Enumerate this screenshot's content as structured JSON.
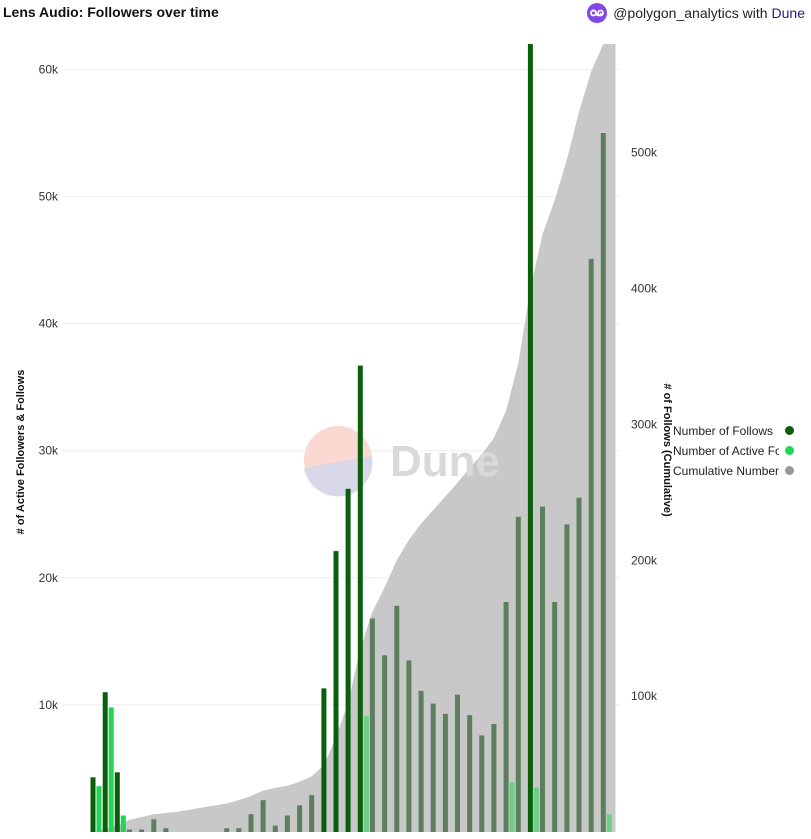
{
  "header": {
    "title": "Lens Audio: Followers over time",
    "attribution_user": "@polygon_analytics",
    "attribution_with": "with",
    "attribution_brand": "Dune"
  },
  "watermark": {
    "text": "Dune"
  },
  "colors": {
    "follows": "#0b5e0b",
    "active": "#1fd655",
    "cumulative": "#c8c8c8",
    "overlay_bar": "#5d7f5d",
    "cumulative_dot": "#999999"
  },
  "legend": [
    {
      "label": "Number of Follows",
      "color": "#0b5e0b"
    },
    {
      "label": "Number of Active Followers",
      "color": "#1fd655"
    },
    {
      "label": "Cumulative Number of Follows",
      "color": "#999999"
    }
  ],
  "chart_data": {
    "type": "bar+area",
    "title": "Lens Audio: Followers over time",
    "y_left_label": "# of Active Followers & Follows",
    "y_right_label": "# of Follows (Cumulative)",
    "y_left_range": [
      0,
      62000
    ],
    "y_right_range": [
      0,
      580000
    ],
    "y_left_ticks": [
      10000,
      20000,
      30000,
      40000,
      50000,
      60000
    ],
    "y_left_tick_labels": [
      "10k",
      "20k",
      "30k",
      "40k",
      "50k",
      "60k"
    ],
    "y_right_ticks": [
      100000,
      200000,
      300000,
      400000,
      500000
    ],
    "y_right_tick_labels": [
      "100k",
      "200k",
      "300k",
      "400k",
      "500k"
    ],
    "periods": 44,
    "series": [
      {
        "name": "Number of Follows",
        "values": [
          4300,
          11000,
          4700,
          200,
          200,
          1000,
          300,
          0,
          0,
          0,
          0,
          300,
          300,
          1400,
          2500,
          500,
          1300,
          2100,
          2900,
          11300,
          22100,
          27000,
          36700,
          16800,
          13900,
          17800,
          13500,
          11100,
          10100,
          9300,
          10800,
          9200,
          7600,
          8500,
          18100,
          24800,
          62000,
          25600,
          18100,
          24200,
          26300,
          45100,
          55000,
          0
        ]
      },
      {
        "name": "Number of Active Followers",
        "values": [
          3600,
          9800,
          1300,
          0,
          0,
          0,
          0,
          0,
          0,
          0,
          0,
          0,
          0,
          0,
          0,
          0,
          0,
          0,
          0,
          0,
          0,
          0,
          9100,
          0,
          0,
          0,
          0,
          0,
          0,
          0,
          0,
          0,
          0,
          0,
          3900,
          0,
          3500,
          0,
          0,
          0,
          0,
          0,
          1400,
          0
        ]
      },
      {
        "name": "Cumulative Number of Follows",
        "values": [
          0,
          2000,
          5000,
          9000,
          11000,
          13000,
          14000,
          15000,
          16500,
          18000,
          19500,
          21000,
          23500,
          26500,
          30500,
          32500,
          34000,
          37000,
          41000,
          49000,
          70000,
          95000,
          135000,
          162000,
          180000,
          200000,
          215000,
          227000,
          237000,
          247000,
          257000,
          268000,
          278000,
          290000,
          310000,
          345000,
          400000,
          440000,
          465000,
          495000,
          530000,
          560000,
          580000,
          580000
        ]
      }
    ]
  }
}
